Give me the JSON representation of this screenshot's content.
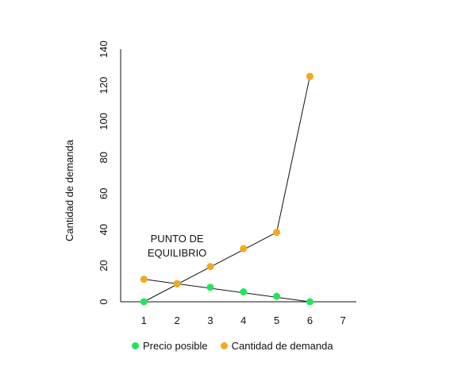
{
  "chart_data": {
    "type": "line",
    "ylabel": "Cantidad de demanda",
    "xlim": [
      0.3,
      7.4
    ],
    "ylim": [
      0,
      140
    ],
    "x_ticks": [
      1,
      2,
      3,
      4,
      5,
      6,
      7
    ],
    "y_ticks": [
      0,
      20,
      40,
      60,
      80,
      100,
      120,
      140
    ],
    "legend_position": "bottom",
    "grid": false,
    "series": [
      {
        "name": "Precio posible",
        "color": "#22e55a",
        "x": [
          1,
          2,
          3,
          4,
          5,
          6
        ],
        "y": [
          0,
          10,
          8,
          5.5,
          3,
          0
        ]
      },
      {
        "name": "Cantidad de demanda",
        "color": "#f5a81e",
        "x": [
          1,
          2,
          3,
          4,
          5,
          6
        ],
        "y": [
          12.5,
          10,
          19.5,
          29.5,
          38.5,
          125
        ]
      }
    ],
    "trend_lines": [
      {
        "from": [
          1,
          12.5
        ],
        "to": [
          6,
          0
        ]
      },
      {
        "from": [
          1,
          0
        ],
        "to": [
          5,
          38.5
        ]
      },
      {
        "from": [
          5,
          38.5
        ],
        "to": [
          6,
          125
        ]
      }
    ],
    "annotations": [
      {
        "lines": [
          "PUNTO DE",
          "EQUILIBRIO"
        ],
        "x": 2,
        "y": 25
      }
    ]
  }
}
